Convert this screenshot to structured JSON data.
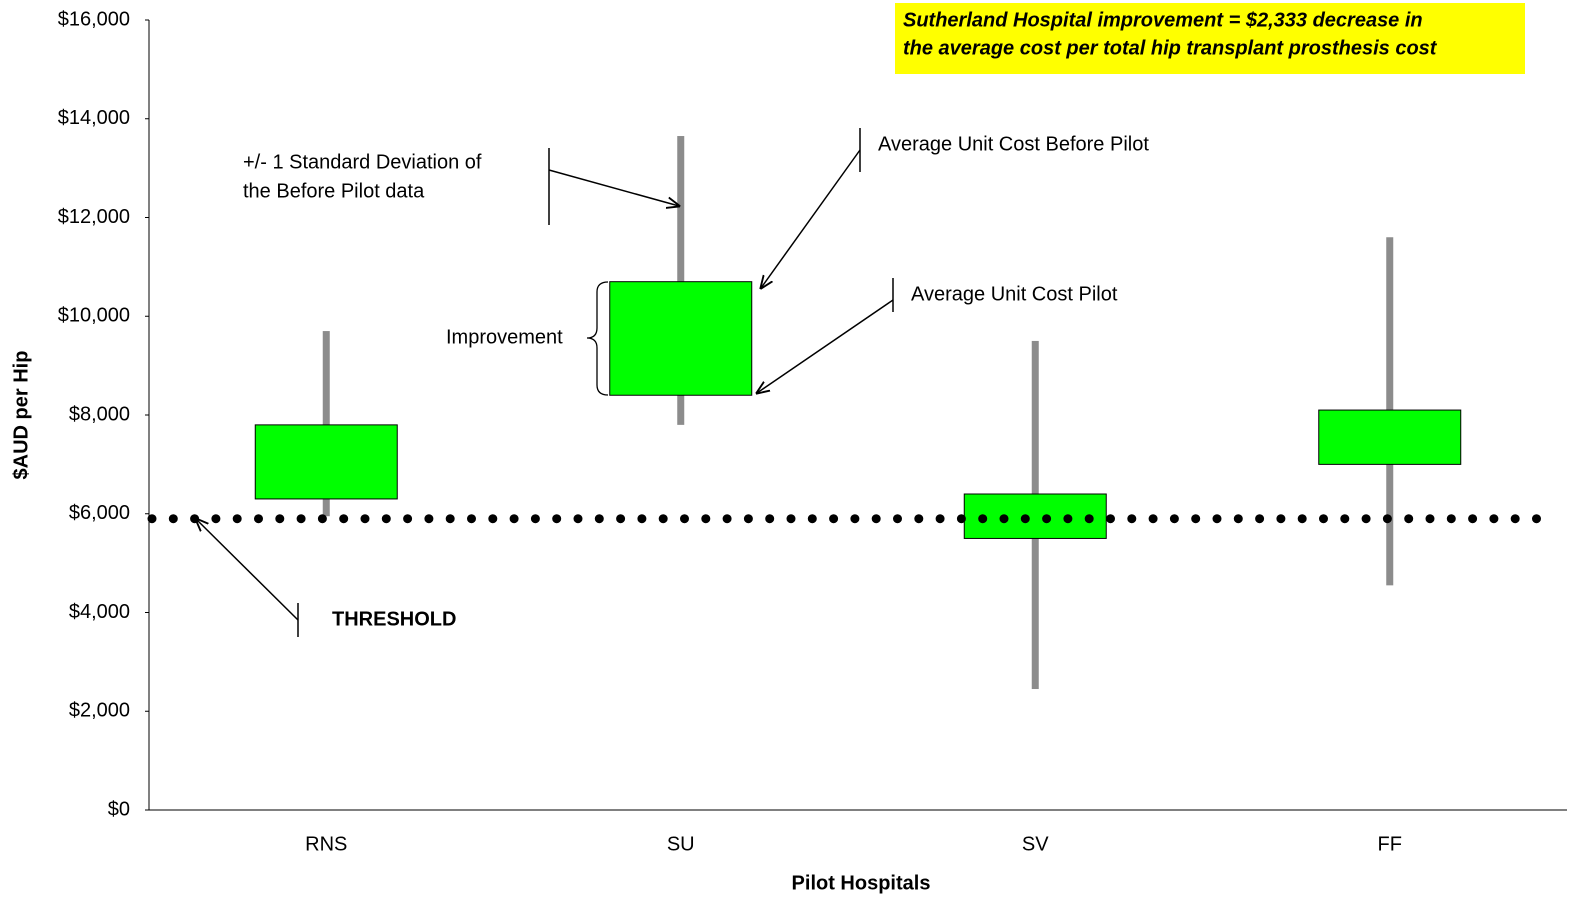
{
  "chart_data": {
    "type": "box",
    "xlabel": "Pilot Hospitals",
    "ylabel": "$AUD per Hip",
    "categories": [
      "RNS",
      "SU",
      "SV",
      "FF"
    ],
    "box_top": [
      7800,
      10700,
      6400,
      8100
    ],
    "box_bottom": [
      6300,
      8400,
      5500,
      7000
    ],
    "whisker_top": [
      9700,
      13650,
      9500,
      11600
    ],
    "whisker_bottom": [
      5950,
      7800,
      2450,
      4550
    ],
    "box_color": "#00ff00",
    "whisker_color": "#8c8c8c",
    "threshold": 5900,
    "ylim": [
      0,
      16000
    ],
    "yticks": [
      {
        "value": 0,
        "label": "$0"
      },
      {
        "value": 2000,
        "label": "$2,000"
      },
      {
        "value": 4000,
        "label": "$4,000"
      },
      {
        "value": 6000,
        "label": "$6,000"
      },
      {
        "value": 8000,
        "label": "$8,000"
      },
      {
        "value": 10000,
        "label": "$10,000"
      },
      {
        "value": 12000,
        "label": "$12,000"
      },
      {
        "value": 14000,
        "label": "$14,000"
      },
      {
        "value": 16000,
        "label": "$16,000"
      }
    ],
    "grid": false,
    "highlight": [
      "Sutherland Hospital improvement = $2,333 decrease in",
      "the average cost per total hip transplant prosthesis cost"
    ],
    "annotations": [
      [
        "+/- 1 Standard Deviation of",
        "the Before Pilot data"
      ],
      [
        "Average Unit Cost Before Pilot"
      ],
      [
        "Average Unit Cost Pilot"
      ],
      [
        "Improvement"
      ],
      [
        "THRESHOLD"
      ]
    ]
  }
}
